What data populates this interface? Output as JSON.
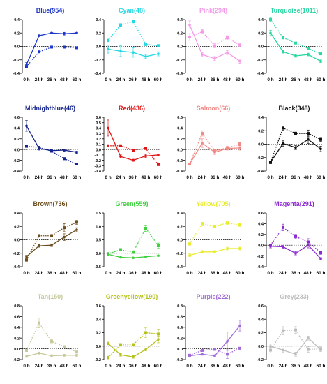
{
  "x_categories": [
    "0 h",
    "24 h",
    "36 h",
    "48 h",
    "60 h"
  ],
  "chart_data": [
    {
      "type": "line",
      "title": "Blue(954)",
      "color": "#1f37c8",
      "ylim": [
        -0.4,
        0.4
      ],
      "yticks": [
        "-0.4",
        "-0.2",
        "0.0",
        "0.2",
        "0.4"
      ],
      "yticks_v": [
        -0.4,
        -0.2,
        0.0,
        0.2,
        0.4
      ],
      "solid": [
        -0.27,
        0.16,
        0.2,
        0.19,
        0.2
      ],
      "solid_err": [
        0.03,
        0.01,
        0.01,
        0.02,
        0.01
      ],
      "dotted": [
        -0.3,
        -0.08,
        -0.01,
        -0.01,
        -0.02
      ],
      "dotted_err": [
        0.02,
        0.01,
        0.01,
        0.01,
        0.01
      ]
    },
    {
      "type": "line",
      "title": "Cyan(48)",
      "color": "#24d8e0",
      "ylim": [
        -0.4,
        0.4
      ],
      "yticks": [
        "-0.4",
        "-0.2",
        "0.0",
        "0.2",
        "0.4"
      ],
      "yticks_v": [
        -0.4,
        -0.2,
        0.0,
        0.2,
        0.4
      ],
      "solid": [
        -0.04,
        -0.07,
        -0.09,
        -0.15,
        -0.11
      ],
      "solid_err": [
        0.06,
        0.08,
        0.07,
        0.03,
        0.03
      ],
      "dotted": [
        0.09,
        0.32,
        0.37,
        0.03,
        0.01
      ],
      "dotted_err": [
        0.02,
        0.02,
        0.02,
        0.02,
        0.02
      ]
    },
    {
      "type": "line",
      "title": "Pink(294)",
      "color": "#f59ae8",
      "ylim": [
        -0.4,
        0.4
      ],
      "yticks": [
        "-0.4",
        "-0.2",
        "0.0",
        "0.2",
        "0.4"
      ],
      "yticks_v": [
        -0.4,
        -0.2,
        0.0,
        0.2,
        0.4
      ],
      "solid": [
        0.32,
        -0.12,
        -0.18,
        -0.09,
        -0.22
      ],
      "solid_err": [
        0.06,
        0.03,
        0.03,
        0.03,
        0.03
      ],
      "dotted": [
        0.14,
        0.22,
        0.01,
        0.13,
        0.02
      ],
      "dotted_err": [
        0.05,
        0.03,
        0.03,
        0.03,
        0.02
      ]
    },
    {
      "type": "line",
      "title": "Turquoise(1011)",
      "color": "#2ad7a2",
      "ylim": [
        -0.4,
        0.4
      ],
      "yticks": [
        "-0.4",
        "-0.2",
        "0.0",
        "0.2",
        "0.4"
      ],
      "yticks_v": [
        -0.4,
        -0.2,
        0.0,
        0.2,
        0.4
      ],
      "solid": [
        0.2,
        -0.08,
        -0.14,
        -0.12,
        -0.22
      ],
      "solid_err": [
        0.04,
        0.02,
        0.02,
        0.02,
        0.02
      ],
      "dotted": [
        0.4,
        0.13,
        0.05,
        -0.03,
        -0.11
      ],
      "dotted_err": [
        0.03,
        0.02,
        0.01,
        0.01,
        0.01
      ]
    },
    {
      "type": "line",
      "title": "Midnightblue(46)",
      "color": "#14248c",
      "ylim": [
        -0.4,
        0.6
      ],
      "yticks": [
        "-0.4",
        "-0.2",
        "0.0",
        "0.2",
        "0.4",
        "0.6"
      ],
      "yticks_v": [
        -0.4,
        -0.2,
        0.0,
        0.2,
        0.4,
        0.6
      ],
      "solid": [
        0.44,
        0.02,
        -0.02,
        -0.01,
        -0.05
      ],
      "solid_err": [
        0.1,
        0.03,
        0.02,
        0.02,
        0.02
      ],
      "dotted": [
        0.06,
        0.04,
        -0.03,
        -0.17,
        -0.27
      ],
      "dotted_err": [
        0.02,
        0.02,
        0.01,
        0.02,
        0.01
      ]
    },
    {
      "type": "line",
      "title": "Red(436)",
      "color": "#e01414",
      "ylim": [
        -0.4,
        0.6
      ],
      "yticks": [
        "-0.4",
        "-0.3",
        "-0.2",
        "-0.1",
        "0.0",
        "0.1",
        "0.2",
        "0.3",
        "0.4",
        "0.5",
        "0.6"
      ],
      "yticks_v": [
        -0.4,
        -0.3,
        -0.2,
        -0.1,
        0.0,
        0.1,
        0.2,
        0.3,
        0.4,
        0.5,
        0.6
      ],
      "solid": [
        0.4,
        -0.13,
        -0.2,
        -0.12,
        -0.1
      ],
      "solid_err": [
        0.15,
        0.03,
        0.02,
        0.03,
        0.02
      ],
      "dotted": [
        0.07,
        0.07,
        -0.01,
        0.02,
        -0.28
      ],
      "dotted_err": [
        0.02,
        0.02,
        0.02,
        0.02,
        0.02
      ]
    },
    {
      "type": "line",
      "title": "Salmon(66)",
      "color": "#f08a86",
      "ylim": [
        -0.4,
        0.6
      ],
      "yticks": [
        "-0.4",
        "-0.2",
        "0.0",
        "0.2",
        "0.4",
        "0.6"
      ],
      "yticks_v": [
        -0.4,
        -0.2,
        0.0,
        0.2,
        0.4,
        0.6
      ],
      "solid": [
        -0.27,
        0.12,
        -0.05,
        0.02,
        0.03
      ],
      "solid_err": [
        0.02,
        0.08,
        0.04,
        0.03,
        0.04
      ],
      "dotted": [
        -0.27,
        0.3,
        -0.02,
        0.03,
        0.1
      ],
      "dotted_err": [
        0.02,
        0.05,
        0.03,
        0.03,
        0.03
      ]
    },
    {
      "type": "line",
      "title": "Black(348)",
      "color": "#111111",
      "ylim": [
        -0.4,
        0.4
      ],
      "yticks": [
        "-0.4",
        "-0.2",
        "0.0",
        "0.2",
        "0.4"
      ],
      "yticks_v": [
        -0.4,
        -0.2,
        0.0,
        0.2,
        0.4
      ],
      "solid": [
        -0.27,
        0.01,
        -0.05,
        0.07,
        -0.07
      ],
      "solid_err": [
        0.02,
        0.04,
        0.03,
        0.06,
        0.04
      ],
      "dotted": [
        -0.27,
        0.24,
        0.16,
        0.16,
        0.07
      ],
      "dotted_err": [
        0.02,
        0.03,
        0.02,
        0.05,
        0.03
      ]
    },
    {
      "type": "line",
      "title": "Brown(736)",
      "color": "#6b4d1e",
      "ylim": [
        -0.4,
        0.4
      ],
      "yticks": [
        "-0.4",
        "-0.2",
        "0.0",
        "0.2",
        "0.4"
      ],
      "yticks_v": [
        -0.4,
        -0.2,
        0.0,
        0.2,
        0.4
      ],
      "solid": [
        -0.25,
        -0.09,
        -0.08,
        0.04,
        0.15
      ],
      "solid_err": [
        0.02,
        0.02,
        0.02,
        0.05,
        0.03
      ],
      "dotted": [
        -0.3,
        0.06,
        0.06,
        0.18,
        0.26
      ],
      "dotted_err": [
        0.02,
        0.02,
        0.02,
        0.06,
        0.03
      ]
    },
    {
      "type": "line",
      "title": "Green(559)",
      "color": "#3fcf3f",
      "ylim": [
        -0.5,
        1.5
      ],
      "yticks": [
        "-0.5",
        "0.0",
        "0.5",
        "1.0",
        "1.5"
      ],
      "yticks_v": [
        -0.5,
        0.0,
        0.5,
        1.0,
        1.5
      ],
      "solid": [
        -0.04,
        -0.15,
        -0.17,
        -0.13,
        -0.09
      ],
      "solid_err": [
        0.03,
        0.02,
        0.02,
        0.02,
        0.02
      ],
      "dotted": [
        -0.02,
        0.13,
        0.04,
        0.93,
        0.28
      ],
      "dotted_err": [
        0.05,
        0.05,
        0.05,
        0.12,
        0.1
      ]
    },
    {
      "type": "line",
      "title": "Yellow(705)",
      "color": "#e8ec2c",
      "ylim": [
        -0.4,
        0.4
      ],
      "yticks": [
        "-0.4",
        "-0.2",
        "0.0",
        "0.2",
        "0.4"
      ],
      "yticks_v": [
        -0.4,
        -0.2,
        0.0,
        0.2,
        0.4
      ],
      "solid": [
        -0.23,
        -0.18,
        -0.18,
        -0.13,
        -0.13
      ],
      "solid_err": [
        0.02,
        0.02,
        0.02,
        0.02,
        0.02
      ],
      "dotted": [
        -0.06,
        0.24,
        0.2,
        0.25,
        0.22
      ],
      "dotted_err": [
        0.03,
        0.02,
        0.02,
        0.02,
        0.02
      ]
    },
    {
      "type": "line",
      "title": "Magenta(291)",
      "color": "#8a2ad0",
      "ylim": [
        -0.4,
        0.6
      ],
      "yticks": [
        "-0.4",
        "-0.2",
        "0.0",
        "0.2",
        "0.4",
        "0.6"
      ],
      "yticks_v": [
        -0.4,
        -0.2,
        0.0,
        0.2,
        0.4,
        0.6
      ],
      "solid": [
        -0.02,
        -0.03,
        -0.15,
        0.0,
        -0.25
      ],
      "solid_err": [
        0.03,
        0.03,
        0.03,
        0.05,
        0.02
      ],
      "dotted": [
        0.0,
        0.33,
        0.16,
        0.06,
        -0.14
      ],
      "dotted_err": [
        0.02,
        0.06,
        0.04,
        0.06,
        0.03
      ]
    },
    {
      "type": "line",
      "title": "Tan(150)",
      "color": "#c6c99a",
      "ylim": [
        -0.2,
        0.8
      ],
      "yticks": [
        "-0.2",
        "0.0",
        "0.2",
        "0.4",
        "0.6",
        "0.8"
      ],
      "yticks_v": [
        -0.2,
        0.0,
        0.2,
        0.4,
        0.6,
        0.8
      ],
      "solid": [
        -0.14,
        -0.08,
        -0.13,
        -0.12,
        -0.12
      ],
      "solid_err": [
        0.02,
        0.02,
        0.02,
        0.02,
        0.02
      ],
      "dotted": [
        -0.03,
        0.48,
        0.14,
        0.04,
        -0.06
      ],
      "dotted_err": [
        0.02,
        0.09,
        0.03,
        0.02,
        0.02
      ]
    },
    {
      "type": "line",
      "title": "Greenyellow(190)",
      "color": "#b6c21c",
      "ylim": [
        -0.2,
        0.6
      ],
      "yticks": [
        "-0.2",
        "0.0",
        "0.2",
        "0.4",
        "0.6"
      ],
      "yticks_v": [
        -0.2,
        0.0,
        0.2,
        0.4,
        0.6
      ],
      "solid": [
        0.04,
        -0.13,
        -0.16,
        -0.05,
        0.1
      ],
      "solid_err": [
        0.02,
        0.02,
        0.02,
        0.02,
        0.05
      ],
      "dotted": [
        -0.17,
        0.02,
        0.02,
        0.2,
        0.18
      ],
      "dotted_err": [
        0.02,
        0.02,
        0.02,
        0.07,
        0.07
      ]
    },
    {
      "type": "line",
      "title": "Purple(222)",
      "color": "#a26cd8",
      "ylim": [
        -0.2,
        0.8
      ],
      "yticks": [
        "-0.2",
        "0.0",
        "0.2",
        "0.4",
        "0.6",
        "0.8"
      ],
      "yticks_v": [
        -0.2,
        0.0,
        0.2,
        0.4,
        0.6,
        0.8
      ],
      "solid": [
        -0.13,
        -0.1,
        -0.13,
        0.14,
        0.43
      ],
      "solid_err": [
        0.02,
        0.02,
        0.02,
        0.17,
        0.1
      ],
      "dotted": [
        -0.12,
        -0.03,
        -0.01,
        -0.1,
        0.01
      ],
      "dotted_err": [
        0.02,
        0.02,
        0.02,
        0.08,
        0.02
      ]
    },
    {
      "type": "line",
      "title": "Grey(233)",
      "color": "#bdbdbd",
      "ylim": [
        -0.2,
        0.6
      ],
      "yticks": [
        "-0.2",
        "0.0",
        "0.2",
        "0.4",
        "0.6"
      ],
      "yticks_v": [
        -0.2,
        0.0,
        0.2,
        0.4,
        0.6
      ],
      "solid": [
        0.0,
        -0.06,
        -0.12,
        0.12,
        -0.05
      ],
      "solid_err": [
        0.03,
        0.03,
        0.03,
        0.03,
        0.03
      ],
      "dotted": [
        -0.06,
        0.23,
        0.24,
        -0.05,
        -0.04
      ],
      "dotted_err": [
        0.04,
        0.06,
        0.05,
        0.04,
        0.03
      ]
    }
  ]
}
